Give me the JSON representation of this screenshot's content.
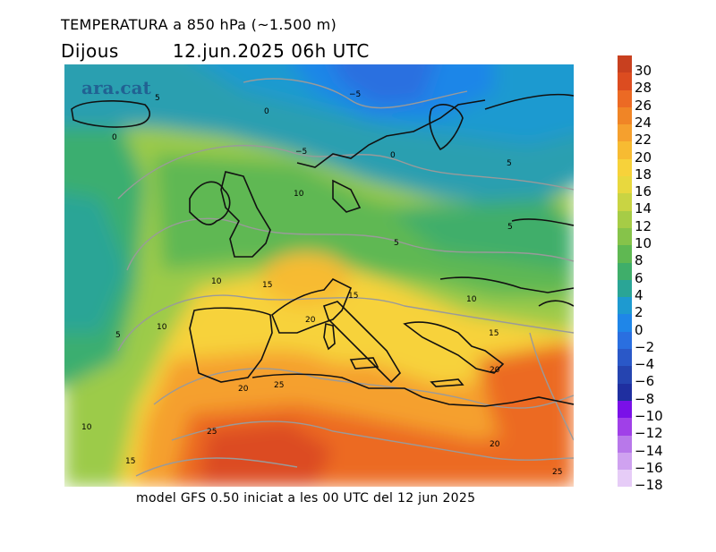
{
  "title": {
    "line1": "TEMPERATURA a 850 hPa (~1.500 m)",
    "day": "Dijous",
    "datetime": "12.jun.2025 06h UTC"
  },
  "watermark": "ara.cat",
  "footer": "model GFS 0.50 iniciat a les 00 UTC del 12 jun 2025",
  "colorbar": {
    "labels": [
      "30",
      "28",
      "26",
      "24",
      "22",
      "20",
      "18",
      "16",
      "14",
      "12",
      "10",
      "8",
      "6",
      "4",
      "2",
      "0",
      "−2",
      "−4",
      "−6",
      "−8",
      "−10",
      "−12",
      "−14",
      "−16",
      "−18"
    ],
    "colors": [
      "#c8401f",
      "#dc4c20",
      "#ec6a24",
      "#f08526",
      "#f5a02e",
      "#f7bb32",
      "#f7d23a",
      "#e8d83e",
      "#c9d443",
      "#a6cc46",
      "#86c34a",
      "#5fb852",
      "#3fae6a",
      "#2aa596",
      "#1e9ad0",
      "#1f86e8",
      "#2a6fe0",
      "#2a58c8",
      "#2544b0",
      "#1f2fa0",
      "#7a10e8",
      "#a040e8",
      "#b878ea",
      "#cfa2f0",
      "#e6ccf7"
    ]
  },
  "contour_labels": [
    {
      "text": "5"
    },
    {
      "text": "0"
    },
    {
      "text": "0"
    },
    {
      "text": "−5"
    },
    {
      "text": "0"
    },
    {
      "text": "−5"
    },
    {
      "text": "5"
    },
    {
      "text": "10"
    },
    {
      "text": "5"
    },
    {
      "text": "5"
    },
    {
      "text": "10"
    },
    {
      "text": "15"
    },
    {
      "text": "15"
    },
    {
      "text": "10"
    },
    {
      "text": "20"
    },
    {
      "text": "5"
    },
    {
      "text": "10"
    },
    {
      "text": "15"
    },
    {
      "text": "20"
    },
    {
      "text": "25"
    },
    {
      "text": "20"
    },
    {
      "text": "25"
    },
    {
      "text": "10"
    },
    {
      "text": "15"
    },
    {
      "text": "20"
    },
    {
      "text": "25"
    }
  ]
}
